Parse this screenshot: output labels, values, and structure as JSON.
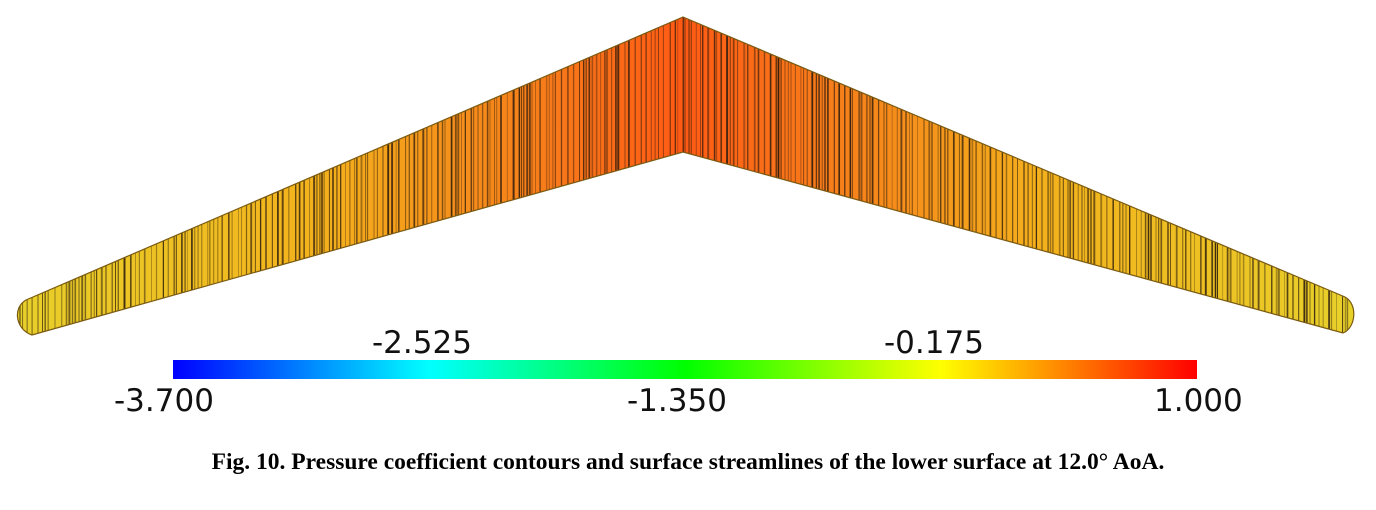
{
  "figure": {
    "colorbar": {
      "ticks_top": [
        "-2.525",
        "-0.175"
      ],
      "ticks_bottom": [
        "-3.700",
        "-1.350",
        "1.000"
      ],
      "range": [
        -3.7,
        1.0
      ],
      "colors": [
        "#0000ff",
        "#00ffff",
        "#00ff00",
        "#ffff00",
        "#ff0000"
      ]
    },
    "surface_colors": {
      "root": "#ff5a14",
      "mid": "#f3b21c",
      "tip": "#e8d02a",
      "streamline": "#2a1a0c"
    }
  },
  "caption": "Fig. 10. Pressure coefficient contours and surface streamlines of the lower surface at 12.0° AoA."
}
